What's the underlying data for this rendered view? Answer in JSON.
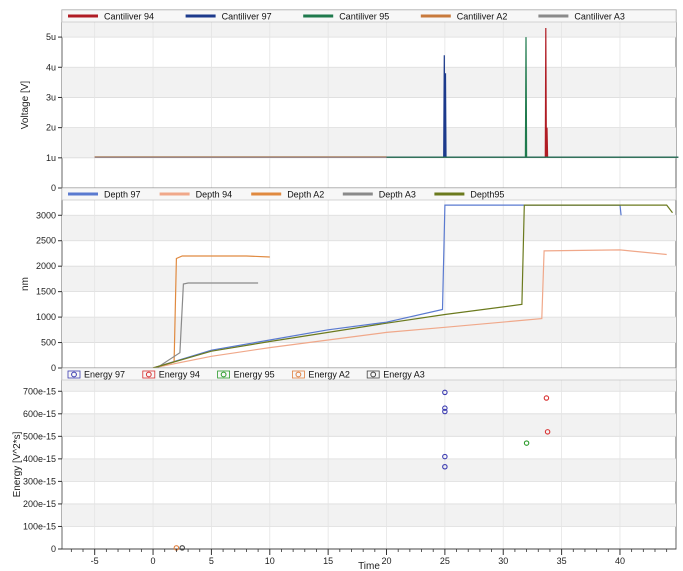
{
  "chart_data": [
    {
      "type": "line",
      "ylabel": "Voltage [V]",
      "ylim": [
        0,
        5.5
      ],
      "yticks": [
        "0",
        "1u",
        "2u",
        "3u",
        "4u",
        "5u"
      ],
      "ytick_values": [
        0,
        1,
        2,
        3,
        4,
        5
      ],
      "grid": true,
      "legend": "top",
      "series": [
        {
          "name": "Cantiliver 94",
          "color": "#b01c24",
          "values": [
            [
              -5,
              1.02
            ],
            [
              20,
              1.02
            ],
            [
              33.6,
              1.02
            ],
            [
              33.65,
              5.3
            ],
            [
              33.7,
              1.02
            ],
            [
              33.75,
              2.0
            ],
            [
              33.8,
              1.02
            ],
            [
              45,
              1.02
            ]
          ]
        },
        {
          "name": "Cantiliver 97",
          "color": "#1c3a8c",
          "values": [
            [
              20,
              1.02
            ],
            [
              24.9,
              1.02
            ],
            [
              24.95,
              4.4
            ],
            [
              25.0,
              1.02
            ],
            [
              25.05,
              3.8
            ],
            [
              25.1,
              1.02
            ],
            [
              45,
              1.02
            ]
          ]
        },
        {
          "name": "Cantiliver 95",
          "color": "#1f7a4d",
          "values": [
            [
              20,
              1.02
            ],
            [
              31.9,
              1.02
            ],
            [
              31.95,
              5.0
            ],
            [
              32.0,
              1.02
            ],
            [
              45,
              1.02
            ]
          ]
        },
        {
          "name": "Cantiliver A2",
          "color": "#c87a3c",
          "values": [
            [
              -5,
              1.03
            ],
            [
              20,
              1.03
            ]
          ]
        },
        {
          "name": "Cantiliver A3",
          "color": "#8a8a8a",
          "values": [
            [
              -5,
              1.02
            ],
            [
              20,
              1.02
            ]
          ]
        }
      ]
    },
    {
      "type": "line",
      "ylabel": "nm",
      "ylim": [
        0,
        3300
      ],
      "yticks": [
        "0",
        "500",
        "1000",
        "1500",
        "2000",
        "2500",
        "3000"
      ],
      "ytick_values": [
        0,
        500,
        1000,
        1500,
        2000,
        2500,
        3000
      ],
      "grid": true,
      "legend": "top",
      "series": [
        {
          "name": "Depth 97",
          "color": "#5a7ad0",
          "values": [
            [
              0,
              0
            ],
            [
              5,
              350
            ],
            [
              10,
              550
            ],
            [
              15,
              750
            ],
            [
              20,
              900
            ],
            [
              24.8,
              1150
            ],
            [
              25.0,
              3200
            ],
            [
              40,
              3200
            ],
            [
              40.1,
              3000
            ]
          ]
        },
        {
          "name": "Depth 94",
          "color": "#f0a88a",
          "values": [
            [
              0,
              0
            ],
            [
              5,
              230
            ],
            [
              10,
              400
            ],
            [
              15,
              550
            ],
            [
              20,
              700
            ],
            [
              25,
              800
            ],
            [
              33.3,
              970
            ],
            [
              33.5,
              2300
            ],
            [
              40,
              2320
            ],
            [
              44,
              2230
            ]
          ]
        },
        {
          "name": "Depth A2",
          "color": "#e08a40",
          "values": [
            [
              0,
              0
            ],
            [
              1.8,
              120
            ],
            [
              2.0,
              2150
            ],
            [
              2.5,
              2200
            ],
            [
              8,
              2200
            ],
            [
              10,
              2180
            ]
          ]
        },
        {
          "name": "Depth A3",
          "color": "#8a8a8a",
          "values": [
            [
              0.3,
              0
            ],
            [
              2.3,
              300
            ],
            [
              2.6,
              1650
            ],
            [
              3,
              1670
            ],
            [
              9,
              1670
            ]
          ]
        },
        {
          "name": "Depth95",
          "color": "#6b7a1e",
          "values": [
            [
              0,
              0
            ],
            [
              5,
              330
            ],
            [
              10,
              520
            ],
            [
              15,
              700
            ],
            [
              20,
              880
            ],
            [
              25,
              1050
            ],
            [
              31.6,
              1250
            ],
            [
              31.8,
              3200
            ],
            [
              40,
              3200
            ],
            [
              44,
              3200
            ],
            [
              44.5,
              3050
            ]
          ]
        }
      ]
    },
    {
      "type": "scatter",
      "xlabel": "Time",
      "ylabel": "Energy [V^2*s]",
      "ylim": [
        0,
        750
      ],
      "yticks": [
        "0",
        "100e-15",
        "200e-15",
        "300e-15",
        "400e-15",
        "500e-15",
        "600e-15",
        "700e-15"
      ],
      "ytick_values": [
        0,
        100,
        200,
        300,
        400,
        500,
        600,
        700
      ],
      "xlim": [
        -7.8,
        44.8
      ],
      "xticks": [
        "-5",
        "0",
        "5",
        "10",
        "15",
        "20",
        "25",
        "30",
        "35",
        "40"
      ],
      "xtick_values": [
        -5,
        0,
        5,
        10,
        15,
        20,
        25,
        30,
        35,
        40
      ],
      "grid": true,
      "legend": "top",
      "series": [
        {
          "name": "Energy 97",
          "color": "#3b3bb0",
          "points": [
            [
              25,
              695
            ],
            [
              25,
              625
            ],
            [
              25,
              610
            ],
            [
              25,
              410
            ],
            [
              25,
              365
            ]
          ]
        },
        {
          "name": "Energy 94",
          "color": "#d83030",
          "points": [
            [
              33.7,
              670
            ],
            [
              33.8,
              520
            ]
          ]
        },
        {
          "name": "Energy 95",
          "color": "#2a9a2a",
          "points": [
            [
              32,
              470
            ]
          ]
        },
        {
          "name": "Energy A2",
          "color": "#e08040",
          "points": [
            [
              2,
              5
            ]
          ]
        },
        {
          "name": "Energy A3",
          "color": "#444444",
          "points": [
            [
              2.5,
              5
            ]
          ]
        }
      ]
    }
  ]
}
